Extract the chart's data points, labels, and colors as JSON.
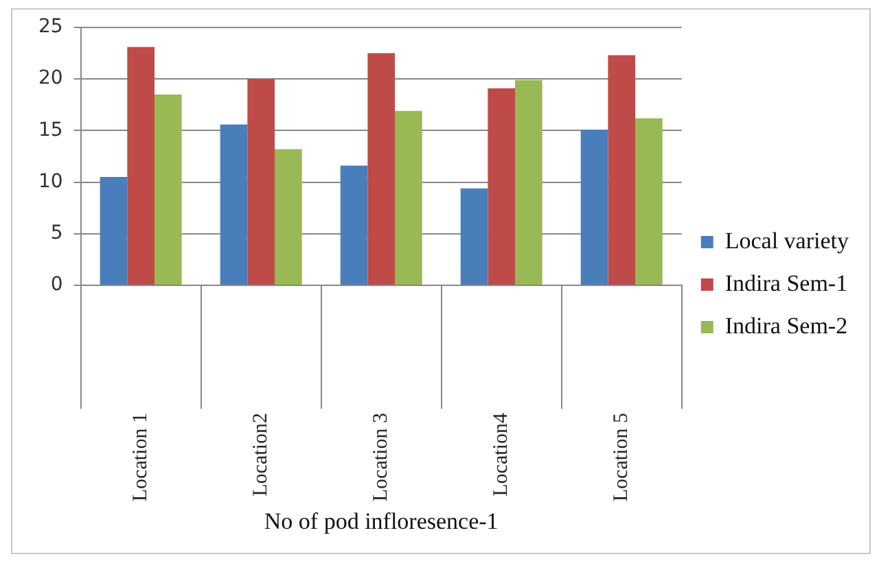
{
  "chart_data": {
    "type": "bar",
    "xlabel": "No of pod infloresence-1",
    "categories": [
      "Location 1",
      "Location2",
      "Location 3",
      "Location4",
      "Location 5"
    ],
    "series": [
      {
        "name": "Local variety",
        "color": "#4a7ebb",
        "values": [
          10.5,
          15.6,
          11.6,
          9.4,
          15.1
        ]
      },
      {
        "name": "Indira Sem-1",
        "color": "#be4b48",
        "values": [
          23.1,
          20.0,
          22.5,
          19.1,
          22.3
        ]
      },
      {
        "name": "Indira Sem-2",
        "color": "#98b954",
        "values": [
          18.5,
          13.2,
          16.9,
          19.9,
          16.2
        ]
      }
    ],
    "ylim": [
      0,
      25
    ],
    "yticks": [
      0,
      5,
      10,
      15,
      20,
      25
    ],
    "grid": "y",
    "legend": "right"
  }
}
